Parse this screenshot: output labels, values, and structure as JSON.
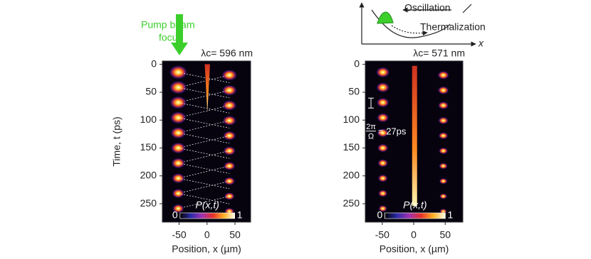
{
  "chart_data": [
    {
      "type": "heatmap",
      "annotation": "λc= 596 nm",
      "pump_label": [
        "Pump beam",
        "focus"
      ],
      "xlabel": "Position, x (µm)",
      "ylabel": "Time, t (ps)",
      "xlim": [
        -80,
        78
      ],
      "ylim": [
        -6,
        283
      ],
      "xticks": [
        -50,
        0,
        50
      ],
      "yticks": [
        0,
        50,
        100,
        150,
        200,
        250
      ],
      "colorbar_label": "P(x,t)",
      "clim": [
        0,
        1
      ],
      "cticks": [
        0,
        1
      ]
    },
    {
      "type": "heatmap",
      "annotation": "λc= 571 nm",
      "period_label": [
        "2π",
        "Ω",
        "= 27ps"
      ],
      "inset_labels": [
        "Oscillation",
        "Thermalization",
        "x"
      ],
      "xlabel": "Position, x (µm)",
      "xlim": [
        -77,
        78
      ],
      "ylim": [
        -6,
        283
      ],
      "xticks": [
        -50,
        0,
        50
      ],
      "yticks": [
        0,
        50,
        100,
        150,
        200,
        250
      ],
      "colorbar_label": "P(x,t)",
      "clim": [
        0,
        1
      ],
      "cticks": [
        0,
        1
      ]
    }
  ]
}
